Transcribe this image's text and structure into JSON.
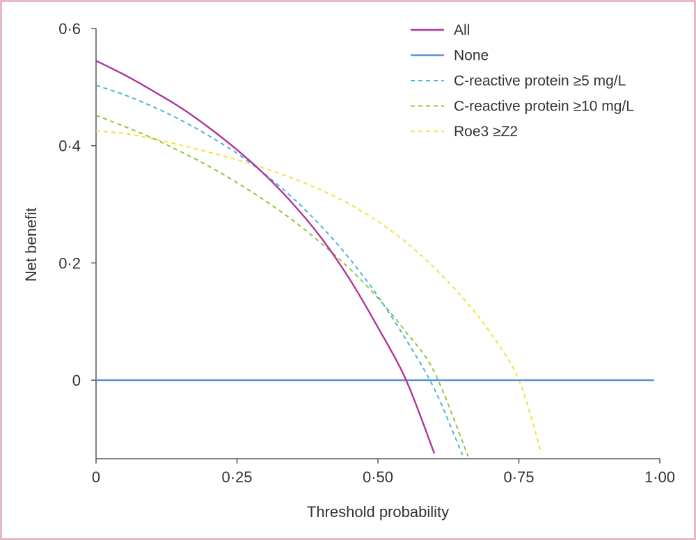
{
  "chart_data": {
    "type": "line",
    "xlabel": "Threshold probability",
    "ylabel": "Net benefit",
    "xlim": [
      0,
      1.0
    ],
    "ylim": [
      -0.134,
      0.6
    ],
    "xticks": [
      {
        "value": 0,
        "label": "0"
      },
      {
        "value": 0.25,
        "label": "0·25"
      },
      {
        "value": 0.5,
        "label": "0·50"
      },
      {
        "value": 0.75,
        "label": "0·75"
      },
      {
        "value": 1.0,
        "label": "1·00"
      }
    ],
    "yticks": [
      {
        "value": 0,
        "label": "0"
      },
      {
        "value": 0.2,
        "label": "0·2"
      },
      {
        "value": 0.4,
        "label": "0·4"
      },
      {
        "value": 0.6,
        "label": "0·6"
      }
    ],
    "grid": false,
    "legend_position": "top-right",
    "series": [
      {
        "name": "All",
        "color": "#b0359a",
        "dashed": false,
        "x": [
          0,
          0.05,
          0.1,
          0.15,
          0.2,
          0.25,
          0.3,
          0.35,
          0.4,
          0.45,
          0.5,
          0.55,
          0.6
        ],
        "y": [
          0.545,
          0.521,
          0.494,
          0.465,
          0.431,
          0.393,
          0.35,
          0.3,
          0.242,
          0.172,
          0.09,
          0.0,
          -0.125
        ]
      },
      {
        "name": "None",
        "color": "#5b8fd6",
        "dashed": false,
        "x": [
          0,
          0.99
        ],
        "y": [
          0,
          0
        ]
      },
      {
        "name": "C-reactive protein ≥5 mg/L",
        "color": "#4ab3de",
        "dashed": true,
        "x": [
          0,
          0.05,
          0.1,
          0.15,
          0.2,
          0.25,
          0.3,
          0.35,
          0.4,
          0.45,
          0.5,
          0.55,
          0.6,
          0.65
        ],
        "y": [
          0.503,
          0.487,
          0.467,
          0.444,
          0.417,
          0.387,
          0.351,
          0.31,
          0.262,
          0.207,
          0.143,
          0.069,
          -0.015,
          -0.128
        ]
      },
      {
        "name": "C-reactive protein ≥10 mg/L",
        "color": "#8cc63f",
        "dashed": true,
        "x": [
          0,
          0.05,
          0.1,
          0.15,
          0.2,
          0.25,
          0.3,
          0.35,
          0.4,
          0.45,
          0.5,
          0.55,
          0.6,
          0.66
        ],
        "y": [
          0.452,
          0.433,
          0.413,
          0.39,
          0.365,
          0.337,
          0.306,
          0.272,
          0.233,
          0.19,
          0.14,
          0.082,
          0.014,
          -0.13
        ]
      },
      {
        "name": "Roe3 ≥Z2",
        "color": "#f5e13c",
        "dashed": true,
        "x": [
          0,
          0.05,
          0.1,
          0.15,
          0.2,
          0.25,
          0.3,
          0.35,
          0.4,
          0.45,
          0.5,
          0.55,
          0.6,
          0.65,
          0.7,
          0.75,
          0.79
        ],
        "y": [
          0.425,
          0.421,
          0.412,
          0.401,
          0.389,
          0.376,
          0.361,
          0.344,
          0.324,
          0.3,
          0.271,
          0.235,
          0.192,
          0.141,
          0.08,
          0.0,
          -0.125
        ]
      }
    ]
  }
}
